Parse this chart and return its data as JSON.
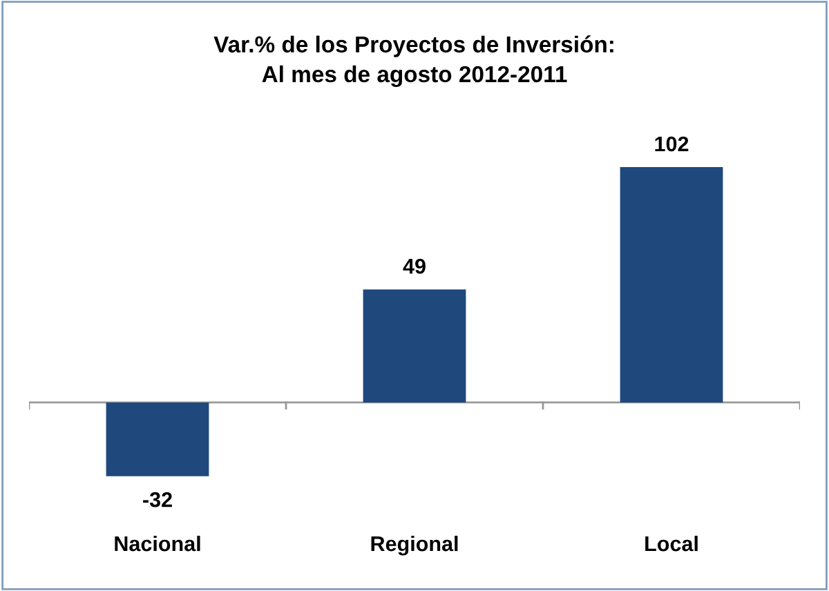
{
  "chart_data": {
    "type": "bar",
    "title": "Var.% de los Proyectos de Inversión:\nAl mes de agosto 2012-2011",
    "categories": [
      "Nacional",
      "Regional",
      "Local"
    ],
    "values": [
      -32,
      49,
      102
    ],
    "color": "#1f497d",
    "data_labels": true,
    "grid": false,
    "tick_labels": "x"
  }
}
